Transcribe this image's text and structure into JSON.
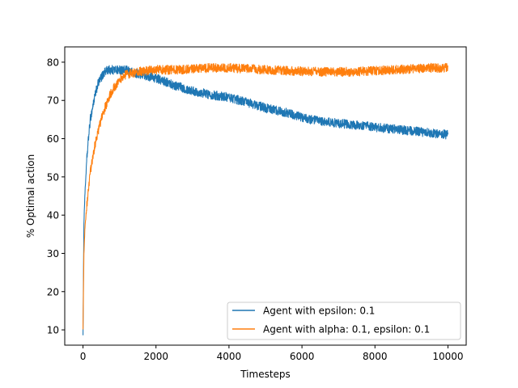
{
  "chart_data": {
    "type": "line",
    "title": "",
    "xlabel": "Timesteps",
    "ylabel": "% Optimal action",
    "xlim": [
      -500,
      10500
    ],
    "ylim": [
      6,
      84
    ],
    "xticks": [
      0,
      2000,
      4000,
      6000,
      8000,
      10000
    ],
    "yticks": [
      10,
      20,
      30,
      40,
      50,
      60,
      70,
      80
    ],
    "grid": false,
    "legend_position": "lower-right",
    "series": [
      {
        "name": "Agent with epsilon: 0.1",
        "color": "#1f77b4",
        "noise": 1.2,
        "x": [
          0,
          25,
          50,
          100,
          150,
          200,
          300,
          400,
          500,
          600,
          700,
          800,
          900,
          1000,
          1200,
          1400,
          1600,
          1800,
          2000,
          2500,
          3000,
          3500,
          4000,
          4500,
          5000,
          5500,
          6000,
          6500,
          7000,
          7500,
          8000,
          8500,
          9000,
          9500,
          10000
        ],
        "y": [
          9,
          38,
          45,
          54,
          60,
          65,
          70,
          74,
          76,
          77.5,
          78,
          78,
          78,
          78,
          77.8,
          77.2,
          76.8,
          76.3,
          75.8,
          74,
          72.5,
          71.5,
          70.8,
          69.5,
          68,
          67,
          65.5,
          64.5,
          64,
          63.5,
          63,
          62.5,
          62,
          61.5,
          61
        ]
      },
      {
        "name": "Agent with alpha: 0.1, epsilon: 0.1",
        "color": "#ff7f0e",
        "noise": 1.2,
        "x": [
          0,
          25,
          50,
          100,
          150,
          200,
          300,
          400,
          500,
          600,
          700,
          800,
          900,
          1000,
          1200,
          1400,
          1600,
          1800,
          2000,
          2500,
          3000,
          3500,
          4000,
          4500,
          5000,
          5500,
          6000,
          6500,
          7000,
          7500,
          8000,
          8500,
          9000,
          9500,
          10000
        ],
        "y": [
          10,
          30,
          36,
          42,
          47,
          51,
          57,
          61.5,
          65,
          68,
          70.5,
          72.5,
          74,
          75.5,
          76.8,
          77.3,
          77.6,
          77.8,
          78,
          78,
          78.2,
          78.5,
          78.5,
          78.3,
          78,
          77.8,
          77.6,
          77.5,
          77.5,
          77.5,
          77.8,
          78,
          78.2,
          78.5,
          78.5
        ]
      }
    ]
  }
}
